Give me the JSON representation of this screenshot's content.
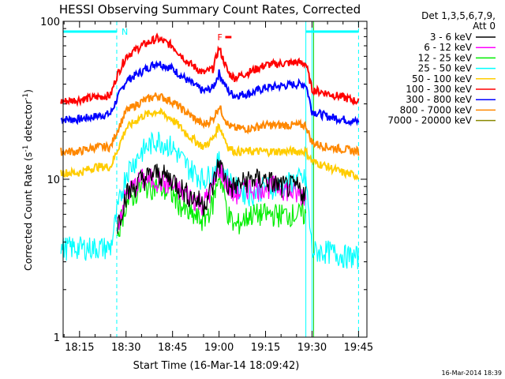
{
  "chart_data": {
    "type": "line",
    "title": "HESSI Observing Summary Count Rates, Corrected",
    "xlabel": "Start Time (16-Mar-14 18:09:42)",
    "ylabel_parts": [
      "Corrected Count Rate (s",
      "-1",
      " detector",
      "-1",
      ")"
    ],
    "yscale": "log",
    "ylim": [
      1,
      100
    ],
    "xlim": [
      "18:09:42",
      "19:47:42"
    ],
    "y_ticks": [
      "1",
      "10",
      "100"
    ],
    "x_ticks": [
      "18:15",
      "18:30",
      "18:45",
      "19:00",
      "19:15",
      "19:30",
      "19:45"
    ],
    "legend_header": [
      "Det 1,3,5,6,7,9,",
      "Att 0"
    ],
    "flags": [
      {
        "label": "N",
        "color": "#00ffff",
        "start": "18:09:42",
        "end": "18:27:00"
      },
      {
        "label": "",
        "color": "#00ffff",
        "start": "19:28:00",
        "end": "19:45:00"
      },
      {
        "label": "F",
        "color": "#ff0000",
        "start": "19:02:00",
        "end": "19:04:00"
      }
    ],
    "vlines": [
      {
        "time": "18:27:00",
        "color": "#00ffff",
        "style": "dashed"
      },
      {
        "time": "19:45:00",
        "color": "#00ffff",
        "style": "dashed"
      },
      {
        "time": "19:28:00",
        "color": "#00ffff",
        "style": "solid"
      },
      {
        "time": "19:30:00",
        "color": "#00ffff",
        "style": "solid"
      },
      {
        "time": "19:30:30",
        "color": "#00cc00",
        "style": "solid"
      }
    ],
    "times": [
      "18:09",
      "18:15",
      "18:20",
      "18:25",
      "18:27",
      "18:30",
      "18:35",
      "18:40",
      "18:45",
      "18:50",
      "18:55",
      "18:58",
      "19:00",
      "19:03",
      "19:05",
      "19:10",
      "19:15",
      "19:20",
      "19:25",
      "19:28",
      "19:30",
      "19:35",
      "19:40",
      "19:45"
    ],
    "series": [
      {
        "name": "3 - 6 keV",
        "color": "#000000",
        "values": [
          null,
          null,
          null,
          null,
          5,
          8,
          10,
          11,
          10,
          8,
          7,
          9,
          13,
          9,
          9,
          10,
          10,
          9,
          9,
          8,
          null,
          null,
          null,
          null
        ]
      },
      {
        "name": "6 - 12 keV",
        "color": "#ff00ff",
        "values": [
          null,
          null,
          null,
          null,
          5,
          8,
          10,
          10,
          9,
          8,
          7,
          9,
          12,
          9,
          8,
          9,
          9,
          9,
          8,
          8,
          null,
          null,
          null,
          null
        ]
      },
      {
        "name": "12 - 25 keV",
        "color": "#00ee00",
        "values": [
          null,
          null,
          null,
          null,
          4.5,
          7,
          9,
          9,
          8,
          6,
          5.5,
          7,
          11,
          6,
          5,
          6,
          6,
          6,
          6,
          6,
          null,
          null,
          null,
          null
        ]
      },
      {
        "name": "25 - 50 keV",
        "color": "#00ffff",
        "values": [
          3.7,
          3.7,
          3.7,
          3.7,
          6,
          11,
          15,
          18,
          16,
          12,
          10,
          11,
          13,
          10,
          9,
          8,
          9,
          9,
          10,
          10,
          3.5,
          3.5,
          3.3,
          3.2
        ]
      },
      {
        "name": "50 - 100 keV",
        "color": "#ffcc00",
        "values": [
          11,
          11,
          12,
          12,
          15,
          21,
          25,
          27,
          24,
          19,
          16,
          18,
          22,
          16,
          15,
          15,
          15,
          15,
          15,
          15,
          13,
          12,
          11,
          10.5
        ]
      },
      {
        "name": "100 - 300 keV",
        "color": "#ff0000",
        "values": [
          31,
          32,
          33,
          34,
          45,
          60,
          70,
          78,
          70,
          55,
          47,
          50,
          68,
          47,
          44,
          48,
          53,
          54,
          55,
          54,
          37,
          35,
          33,
          31
        ]
      },
      {
        "name": "300 - 800 keV",
        "color": "#0000ff",
        "values": [
          24,
          24,
          25,
          26,
          32,
          42,
          48,
          55,
          50,
          42,
          36,
          38,
          47,
          36,
          34,
          35,
          38,
          39,
          40,
          40,
          27,
          25,
          24,
          23
        ]
      },
      {
        "name": "800 - 7000 keV",
        "color": "#ff8800",
        "values": [
          15,
          15,
          16,
          16,
          20,
          27,
          31,
          34,
          31,
          26,
          22,
          24,
          29,
          22,
          21,
          21,
          22,
          22,
          22,
          22,
          17,
          16,
          15.5,
          15
        ]
      },
      {
        "name": "7000 - 20000 keV",
        "color": "#888800",
        "values": []
      }
    ]
  },
  "footer_timestamp": "16-Mar-2014 18:39"
}
